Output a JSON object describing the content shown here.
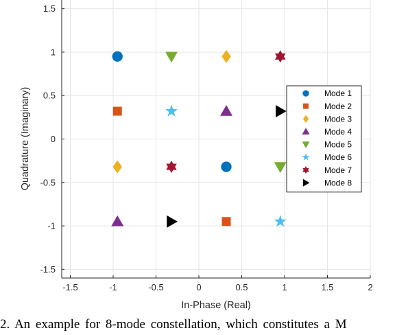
{
  "chart_data": {
    "type": "scatter",
    "title": "",
    "xlabel": "In-Phase (Real)",
    "ylabel": "Quadrature (Imaginary)",
    "xlim": [
      -1.6,
      2.0
    ],
    "ylim": [
      -1.6,
      1.6
    ],
    "x_ticks": [
      -1.5,
      -1,
      -0.5,
      0,
      0.5,
      1,
      1.5,
      2
    ],
    "x_tick_labels": [
      "-1.5",
      "-1",
      "-0.5",
      "0",
      "0.5",
      "1",
      "1.5",
      "2"
    ],
    "y_ticks": [
      -1.5,
      -1,
      -0.5,
      0,
      0.5,
      1,
      1.5
    ],
    "y_tick_labels": [
      "-1.5",
      "-1",
      "-0.5",
      "0",
      "0.5",
      "1",
      "1.5"
    ],
    "grid": true,
    "legend_position": "right",
    "series": [
      {
        "name": "Mode 1",
        "marker": "circle",
        "color": "#0072BD",
        "points": [
          [
            -0.95,
            0.95
          ],
          [
            0.32,
            -0.32
          ]
        ]
      },
      {
        "name": "Mode 2",
        "marker": "square",
        "color": "#D95319",
        "points": [
          [
            -0.95,
            0.32
          ],
          [
            0.32,
            -0.95
          ]
        ]
      },
      {
        "name": "Mode 3",
        "marker": "diamond",
        "color": "#EDB120",
        "points": [
          [
            0.32,
            0.95
          ],
          [
            -0.95,
            -0.32
          ]
        ]
      },
      {
        "name": "Mode 4",
        "marker": "triangle-up",
        "color": "#7E2F8E",
        "points": [
          [
            0.32,
            0.32
          ],
          [
            -0.95,
            -0.95
          ]
        ]
      },
      {
        "name": "Mode 5",
        "marker": "triangle-down",
        "color": "#77AC30",
        "points": [
          [
            -0.32,
            0.95
          ],
          [
            0.95,
            -0.32
          ]
        ]
      },
      {
        "name": "Mode 6",
        "marker": "star",
        "color": "#4DBEEE",
        "points": [
          [
            -0.32,
            0.32
          ],
          [
            0.95,
            -0.95
          ]
        ]
      },
      {
        "name": "Mode 7",
        "marker": "hexagram",
        "color": "#A2142F",
        "points": [
          [
            0.95,
            0.95
          ],
          [
            -0.32,
            -0.32
          ]
        ]
      },
      {
        "name": "Mode 8",
        "marker": "triangle-right",
        "color": "#000000",
        "points": [
          [
            0.95,
            0.32
          ],
          [
            -0.32,
            -0.95
          ]
        ]
      }
    ]
  },
  "caption": {
    "text": "2.  An example for 8-mode constellation, which constitutes a M"
  }
}
